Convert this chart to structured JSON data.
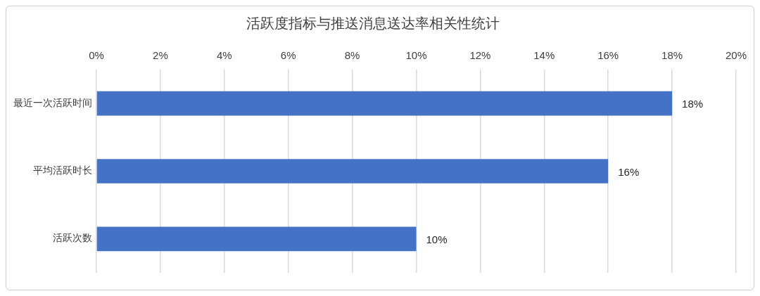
{
  "chart_data": {
    "type": "bar",
    "orientation": "horizontal",
    "title": "活跃度指标与推送消息送达率相关性统计",
    "categories": [
      "最近一次活跃时间",
      "平均活跃时长",
      "活跃次数"
    ],
    "values": [
      18,
      16,
      10
    ],
    "value_labels": [
      "18%",
      "16%",
      "10%"
    ],
    "color": "#4472c4",
    "xlim": [
      0,
      20
    ],
    "xticks": [
      {
        "value": 0,
        "label": "0%"
      },
      {
        "value": 2,
        "label": "2%"
      },
      {
        "value": 4,
        "label": "4%"
      },
      {
        "value": 6,
        "label": "6%"
      },
      {
        "value": 8,
        "label": "8%"
      },
      {
        "value": 10,
        "label": "10%"
      },
      {
        "value": 12,
        "label": "12%"
      },
      {
        "value": 14,
        "label": "14%"
      },
      {
        "value": 16,
        "label": "16%"
      },
      {
        "value": 18,
        "label": "18%"
      },
      {
        "value": 20,
        "label": "20%"
      }
    ],
    "grid": "x",
    "legend": false
  }
}
